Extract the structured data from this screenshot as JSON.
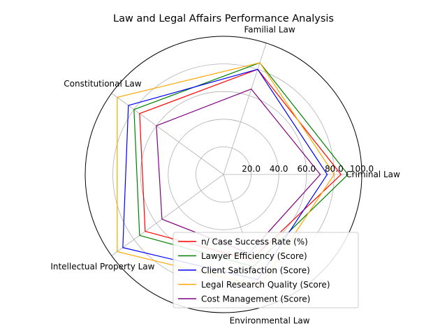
{
  "chart_data": {
    "type": "radar",
    "title": "Law and Legal Affairs Performance Analysis",
    "categories": [
      "Criminal Law",
      "Familial Law",
      "Constitutional Law",
      "Intellectual Property Law",
      "Environmental Law"
    ],
    "rlim": [
      0,
      100
    ],
    "rticks": [
      20,
      40,
      60,
      80,
      100
    ],
    "rtick_labels": [
      "20.0",
      "40.0",
      "60.0",
      "80.0",
      "100.0"
    ],
    "grid": true,
    "legend_position": "lower-right",
    "series": [
      {
        "name": "n/ Case Success Rate (%)",
        "color": "#ff0000",
        "values": [
          85,
          80,
          75,
          70,
          65
        ]
      },
      {
        "name": "Lawyer Efficiency (Score)",
        "color": "#008000",
        "values": [
          90,
          85,
          80,
          75,
          70
        ]
      },
      {
        "name": "Client Satisfaction (Score)",
        "color": "#0000ff",
        "values": [
          75,
          80,
          85,
          90,
          80
        ]
      },
      {
        "name": "Legal Research Quality (Score)",
        "color": "#ffa500",
        "values": [
          80,
          85,
          95,
          95,
          85
        ]
      },
      {
        "name": "Cost Management (Score)",
        "color": "#800080",
        "values": [
          70,
          65,
          60,
          55,
          60
        ]
      }
    ]
  }
}
